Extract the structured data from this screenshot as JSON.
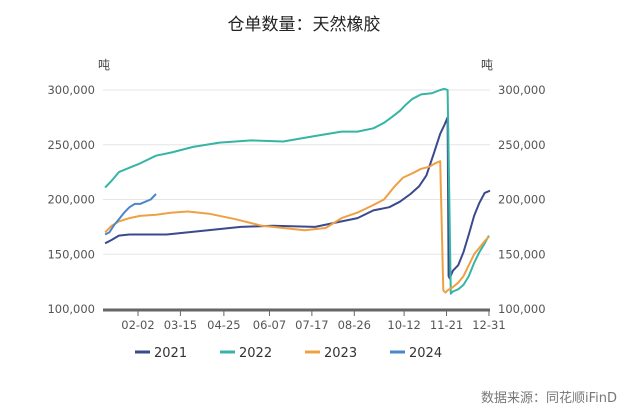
{
  "chart_data": {
    "type": "line",
    "title": "仓单数量：天然橡胶",
    "y_unit_left": "吨",
    "y_unit_right": "吨",
    "ylim": [
      100000,
      300000
    ],
    "yticks": [
      "100,000",
      "150,000",
      "200,000",
      "250,000",
      "300,000"
    ],
    "ytick_values": [
      100000,
      150000,
      200000,
      250000,
      300000
    ],
    "xticks": [
      "02-02",
      "03-15",
      "04-25",
      "06-07",
      "07-17",
      "08-26",
      "10-12",
      "11-21",
      "12-31"
    ],
    "x_domain": [
      0,
      365
    ],
    "xtick_days": [
      33,
      73,
      114,
      157,
      197,
      237,
      284,
      324,
      364
    ],
    "source": "数据来源：同花顺iFinD",
    "series": [
      {
        "name": "2021",
        "color": "#3a4a8c",
        "x": [
          2,
          8,
          15,
          25,
          60,
          90,
          130,
          160,
          200,
          225,
          240,
          255,
          270,
          280,
          290,
          298,
          305,
          312,
          318,
          322,
          325,
          326,
          327,
          330,
          335,
          340,
          345,
          350,
          355,
          360,
          365
        ],
        "y": [
          160000,
          163000,
          167000,
          168000,
          168000,
          171000,
          175000,
          176000,
          175000,
          180000,
          183000,
          190000,
          193000,
          198000,
          205000,
          212000,
          222000,
          242000,
          260000,
          268000,
          275000,
          130000,
          128000,
          135000,
          140000,
          152000,
          168000,
          185000,
          197000,
          206000,
          208000
        ]
      },
      {
        "name": "2022",
        "color": "#36b5a5",
        "x": [
          2,
          8,
          15,
          25,
          35,
          50,
          65,
          85,
          110,
          140,
          170,
          200,
          225,
          240,
          255,
          265,
          272,
          280,
          285,
          292,
          300,
          310,
          318,
          322,
          325,
          328,
          330,
          335,
          340,
          345,
          350,
          355,
          360,
          364
        ],
        "y": [
          211000,
          217000,
          225000,
          229000,
          233000,
          240000,
          243000,
          248000,
          252000,
          254000,
          253000,
          258000,
          262000,
          262000,
          265000,
          270000,
          275000,
          281000,
          286000,
          292000,
          296000,
          297000,
          300000,
          301000,
          300000,
          114000,
          116000,
          118000,
          122000,
          130000,
          142000,
          152000,
          160000,
          167000
        ]
      },
      {
        "name": "2023",
        "color": "#f0a044",
        "x": [
          2,
          8,
          15,
          25,
          35,
          50,
          65,
          80,
          100,
          125,
          150,
          170,
          190,
          210,
          225,
          240,
          255,
          265,
          275,
          283,
          292,
          300,
          308,
          313,
          318,
          321,
          322,
          323,
          325,
          330,
          335,
          340,
          345,
          350,
          355,
          360,
          364
        ],
        "y": [
          170000,
          176000,
          180000,
          183000,
          185000,
          186000,
          188000,
          189000,
          187000,
          182000,
          176000,
          174000,
          172000,
          174000,
          183000,
          188000,
          195000,
          200000,
          212000,
          220000,
          224000,
          228000,
          230000,
          233000,
          235000,
          117000,
          116000,
          115000,
          117000,
          120000,
          124000,
          130000,
          140000,
          150000,
          156000,
          162000,
          166000
        ]
      },
      {
        "name": "2024",
        "color": "#4a86c8",
        "x": [
          2,
          6,
          10,
          15,
          20,
          25,
          30,
          35,
          40,
          45,
          50
        ],
        "y": [
          168000,
          170000,
          176000,
          182000,
          188000,
          193000,
          196000,
          196000,
          198000,
          200000,
          205000
        ]
      }
    ]
  }
}
